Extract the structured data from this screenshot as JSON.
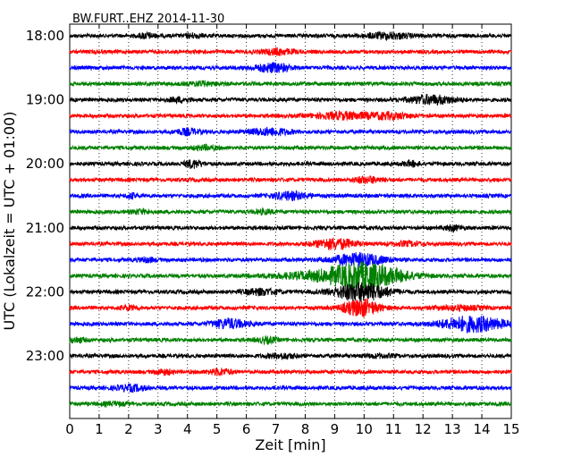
{
  "chart_data": {
    "type": "line",
    "title": "BW.FURT..EHZ 2014-11-30",
    "xlabel": "Zeit  [min]",
    "ylabel": "UTC (Lokalzeit = UTC + 01:00)",
    "xlim": [
      0,
      15
    ],
    "x_ticks": [
      0,
      1,
      2,
      3,
      4,
      5,
      6,
      7,
      8,
      9,
      10,
      11,
      12,
      13,
      14,
      15
    ],
    "start_time": "18:00",
    "trace_interval_min": 15,
    "y_tick_labels": [
      "18:00",
      "19:00",
      "20:00",
      "21:00",
      "22:00",
      "23:00"
    ],
    "trace_colors": [
      "#000000",
      "#ff0000",
      "#0000ff",
      "#008000"
    ],
    "grid": true,
    "trace_events": [
      [
        [
          2.6,
          2.5,
          0.3
        ],
        [
          4.2,
          2.0,
          0.3
        ],
        [
          10.8,
          3.0,
          0.8
        ]
      ],
      [
        [
          7.1,
          3.0,
          0.5
        ]
      ],
      [
        [
          6.9,
          4.5,
          0.6
        ]
      ],
      [
        [
          4.5,
          2.0,
          0.5
        ]
      ],
      [
        [
          3.7,
          2.0,
          0.4
        ],
        [
          12.3,
          4.5,
          0.8
        ]
      ],
      [
        [
          9.3,
          3.5,
          1.0
        ],
        [
          10.9,
          3.0,
          0.7
        ]
      ],
      [
        [
          4.0,
          3.0,
          0.4
        ],
        [
          6.8,
          3.5,
          0.7
        ]
      ],
      [
        [
          4.6,
          2.0,
          0.4
        ]
      ],
      [
        [
          4.2,
          4.0,
          0.3
        ],
        [
          11.6,
          2.5,
          0.3
        ]
      ],
      [
        [
          10.1,
          3.0,
          0.5
        ]
      ],
      [
        [
          2.1,
          2.5,
          0.2
        ],
        [
          7.5,
          4.0,
          0.6
        ]
      ],
      [
        [
          2.4,
          2.0,
          0.3
        ],
        [
          6.6,
          2.0,
          0.3
        ]
      ],
      [
        [
          13.0,
          2.5,
          0.3
        ]
      ],
      [
        [
          9.0,
          5.5,
          0.7
        ],
        [
          11.5,
          2.0,
          0.5
        ]
      ],
      [
        [
          2.6,
          2.0,
          0.3
        ],
        [
          9.8,
          6.5,
          0.9
        ]
      ],
      [
        [
          8.0,
          2.5,
          1.5
        ],
        [
          10.0,
          14.0,
          1.3
        ]
      ],
      [
        [
          6.5,
          3.0,
          0.6
        ],
        [
          9.9,
          10.0,
          0.9
        ]
      ],
      [
        [
          2.0,
          2.0,
          0.3
        ],
        [
          9.9,
          9.0,
          0.6
        ],
        [
          13.2,
          2.0,
          0.8
        ]
      ],
      [
        [
          5.4,
          5.0,
          0.6
        ],
        [
          13.7,
          8.0,
          1.1
        ]
      ],
      [
        [
          0.2,
          2.5,
          0.3
        ],
        [
          6.7,
          3.0,
          0.3
        ]
      ],
      [
        [
          7.2,
          2.5,
          0.5
        ],
        [
          10.5,
          1.5,
          0.5
        ]
      ],
      [
        [
          3.2,
          2.5,
          0.3
        ],
        [
          5.1,
          3.0,
          0.4
        ]
      ],
      [
        [
          2.1,
          3.0,
          0.5
        ]
      ],
      [
        [
          1.5,
          1.5,
          0.5
        ]
      ]
    ]
  }
}
